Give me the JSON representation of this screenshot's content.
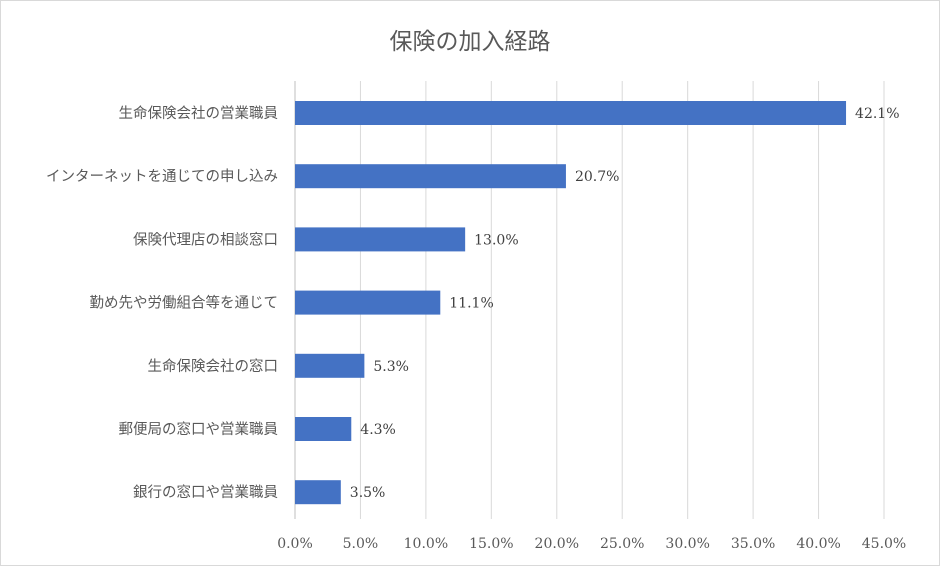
{
  "chart_data": {
    "type": "bar",
    "orientation": "horizontal",
    "title": "保険の加入経路",
    "categories": [
      "生命保険会社の営業職員",
      "インターネットを通じての申し込み",
      "保険代理店の相談窓口",
      "勤め先や労働組合等を通じて",
      "生命保険会社の窓口",
      "郵便局の窓口や営業職員",
      "銀行の窓口や営業職員"
    ],
    "values": [
      42.1,
      20.7,
      13.0,
      11.1,
      5.3,
      4.3,
      3.5
    ],
    "value_labels": [
      "42.1%",
      "20.7%",
      "13.0%",
      "11.1%",
      "5.3%",
      "4.3%",
      "3.5%"
    ],
    "xlim": [
      0,
      45
    ],
    "xticks": [
      0,
      5,
      10,
      15,
      20,
      25,
      30,
      35,
      40,
      45
    ],
    "xtick_labels": [
      "0.0%",
      "5.0%",
      "10.0%",
      "15.0%",
      "20.0%",
      "25.0%",
      "30.0%",
      "35.0%",
      "40.0%",
      "45.0%"
    ],
    "xlabel": "",
    "ylabel": "",
    "grid": true,
    "bar_color": "#4472c4"
  }
}
